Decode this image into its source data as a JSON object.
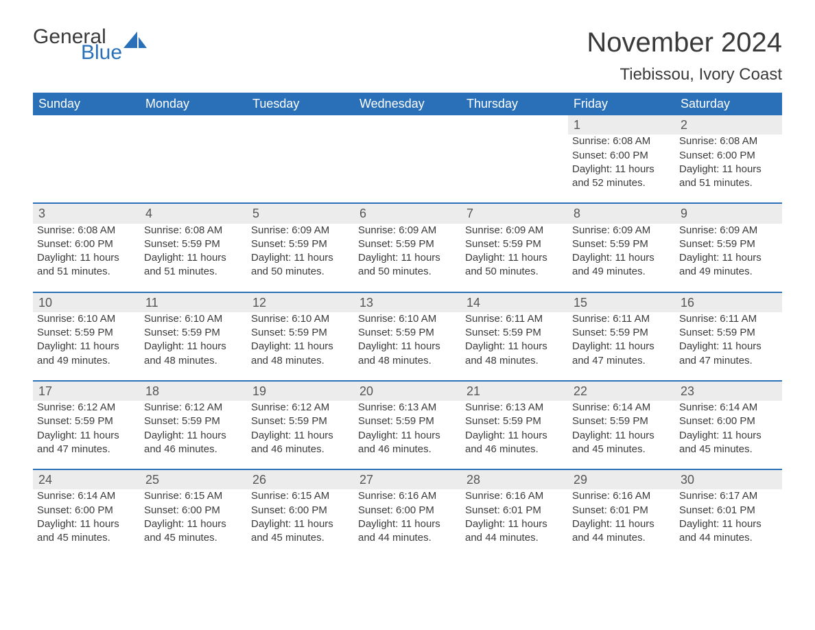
{
  "logo": {
    "text1": "General",
    "text2": "Blue",
    "sail_color": "#2a70b8",
    "text_color": "#3a3a3a"
  },
  "title": "November 2024",
  "location": "Tiebissou, Ivory Coast",
  "colors": {
    "header_bg": "#2a70b8",
    "header_text": "#ffffff",
    "row_divider": "#2a70b8",
    "daynum_bg": "#ececec",
    "body_text": "#3a3a3a"
  },
  "typography": {
    "title_fontsize": 40,
    "location_fontsize": 24,
    "dayheader_fontsize": 18,
    "daynum_fontsize": 18,
    "cell_fontsize": 15
  },
  "layout": {
    "columns": 7,
    "rows": 5
  },
  "day_headers": [
    "Sunday",
    "Monday",
    "Tuesday",
    "Wednesday",
    "Thursday",
    "Friday",
    "Saturday"
  ],
  "labels": {
    "sunrise": "Sunrise:",
    "sunset": "Sunset:",
    "daylight": "Daylight:"
  },
  "weeks": [
    [
      null,
      null,
      null,
      null,
      null,
      {
        "n": "1",
        "sunrise": "6:08 AM",
        "sunset": "6:00 PM",
        "daylight": "11 hours and 52 minutes."
      },
      {
        "n": "2",
        "sunrise": "6:08 AM",
        "sunset": "6:00 PM",
        "daylight": "11 hours and 51 minutes."
      }
    ],
    [
      {
        "n": "3",
        "sunrise": "6:08 AM",
        "sunset": "6:00 PM",
        "daylight": "11 hours and 51 minutes."
      },
      {
        "n": "4",
        "sunrise": "6:08 AM",
        "sunset": "5:59 PM",
        "daylight": "11 hours and 51 minutes."
      },
      {
        "n": "5",
        "sunrise": "6:09 AM",
        "sunset": "5:59 PM",
        "daylight": "11 hours and 50 minutes."
      },
      {
        "n": "6",
        "sunrise": "6:09 AM",
        "sunset": "5:59 PM",
        "daylight": "11 hours and 50 minutes."
      },
      {
        "n": "7",
        "sunrise": "6:09 AM",
        "sunset": "5:59 PM",
        "daylight": "11 hours and 50 minutes."
      },
      {
        "n": "8",
        "sunrise": "6:09 AM",
        "sunset": "5:59 PM",
        "daylight": "11 hours and 49 minutes."
      },
      {
        "n": "9",
        "sunrise": "6:09 AM",
        "sunset": "5:59 PM",
        "daylight": "11 hours and 49 minutes."
      }
    ],
    [
      {
        "n": "10",
        "sunrise": "6:10 AM",
        "sunset": "5:59 PM",
        "daylight": "11 hours and 49 minutes."
      },
      {
        "n": "11",
        "sunrise": "6:10 AM",
        "sunset": "5:59 PM",
        "daylight": "11 hours and 48 minutes."
      },
      {
        "n": "12",
        "sunrise": "6:10 AM",
        "sunset": "5:59 PM",
        "daylight": "11 hours and 48 minutes."
      },
      {
        "n": "13",
        "sunrise": "6:10 AM",
        "sunset": "5:59 PM",
        "daylight": "11 hours and 48 minutes."
      },
      {
        "n": "14",
        "sunrise": "6:11 AM",
        "sunset": "5:59 PM",
        "daylight": "11 hours and 48 minutes."
      },
      {
        "n": "15",
        "sunrise": "6:11 AM",
        "sunset": "5:59 PM",
        "daylight": "11 hours and 47 minutes."
      },
      {
        "n": "16",
        "sunrise": "6:11 AM",
        "sunset": "5:59 PM",
        "daylight": "11 hours and 47 minutes."
      }
    ],
    [
      {
        "n": "17",
        "sunrise": "6:12 AM",
        "sunset": "5:59 PM",
        "daylight": "11 hours and 47 minutes."
      },
      {
        "n": "18",
        "sunrise": "6:12 AM",
        "sunset": "5:59 PM",
        "daylight": "11 hours and 46 minutes."
      },
      {
        "n": "19",
        "sunrise": "6:12 AM",
        "sunset": "5:59 PM",
        "daylight": "11 hours and 46 minutes."
      },
      {
        "n": "20",
        "sunrise": "6:13 AM",
        "sunset": "5:59 PM",
        "daylight": "11 hours and 46 minutes."
      },
      {
        "n": "21",
        "sunrise": "6:13 AM",
        "sunset": "5:59 PM",
        "daylight": "11 hours and 46 minutes."
      },
      {
        "n": "22",
        "sunrise": "6:14 AM",
        "sunset": "5:59 PM",
        "daylight": "11 hours and 45 minutes."
      },
      {
        "n": "23",
        "sunrise": "6:14 AM",
        "sunset": "6:00 PM",
        "daylight": "11 hours and 45 minutes."
      }
    ],
    [
      {
        "n": "24",
        "sunrise": "6:14 AM",
        "sunset": "6:00 PM",
        "daylight": "11 hours and 45 minutes."
      },
      {
        "n": "25",
        "sunrise": "6:15 AM",
        "sunset": "6:00 PM",
        "daylight": "11 hours and 45 minutes."
      },
      {
        "n": "26",
        "sunrise": "6:15 AM",
        "sunset": "6:00 PM",
        "daylight": "11 hours and 45 minutes."
      },
      {
        "n": "27",
        "sunrise": "6:16 AM",
        "sunset": "6:00 PM",
        "daylight": "11 hours and 44 minutes."
      },
      {
        "n": "28",
        "sunrise": "6:16 AM",
        "sunset": "6:01 PM",
        "daylight": "11 hours and 44 minutes."
      },
      {
        "n": "29",
        "sunrise": "6:16 AM",
        "sunset": "6:01 PM",
        "daylight": "11 hours and 44 minutes."
      },
      {
        "n": "30",
        "sunrise": "6:17 AM",
        "sunset": "6:01 PM",
        "daylight": "11 hours and 44 minutes."
      }
    ]
  ]
}
